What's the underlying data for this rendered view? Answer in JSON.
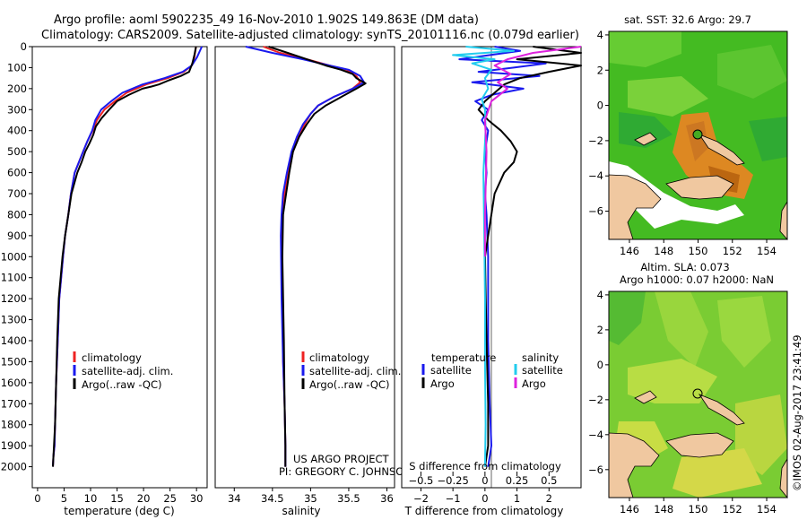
{
  "figure": {
    "title_line1": "Argo profile: aoml 5902235_49 16-Nov-2010 1.902S 149.863E (DM data)",
    "title_line2": "Climatology: CARS2009. Satellite-adjusted climatology: synTS_20101116.nc (0.079d earlier)",
    "timestamp": "©IMOS 02-Aug-2017 23:41:49",
    "project_line1": "US ARGO PROJECT",
    "project_line2": "PI: GREGORY C. JOHNSON"
  },
  "colors": {
    "climatology": "#ee2222",
    "satellite": "#1a1aee",
    "argo": "#000000",
    "sal_satellite": "#22ccee",
    "sal_argo": "#dd22dd"
  },
  "chart_data": [
    {
      "type": "line",
      "id": "temperature",
      "xlabel": "temperature (deg C)",
      "xlim": [
        -1,
        32
      ],
      "ylim": [
        2100,
        0
      ],
      "xticks": [
        0,
        5,
        10,
        15,
        20,
        25,
        30
      ],
      "xtick_labels": [
        "0",
        "5",
        "10",
        "15",
        "20",
        "25",
        "30"
      ],
      "yticks": [
        0,
        100,
        200,
        300,
        400,
        500,
        600,
        700,
        800,
        900,
        1000,
        1100,
        1200,
        1300,
        1400,
        1500,
        1600,
        1700,
        1800,
        1900,
        2000
      ],
      "legend": [
        "climatology",
        "satellite-adj. clim.",
        "Argo(..raw -QC)"
      ],
      "series": [
        {
          "name": "climatology",
          "color_key": "climatology",
          "x": [
            29.9,
            29.6,
            29.1,
            27.6,
            24.6,
            20.5,
            16.8,
            14.6,
            12.6,
            11.2,
            10.4,
            9.4,
            8.6,
            7.8,
            7.0,
            6.3,
            5.8,
            5.2,
            4.8,
            4.1,
            3.8,
            3.5,
            3.3,
            3.2,
            3.0,
            2.9
          ],
          "y": [
            0,
            50,
            90,
            120,
            150,
            180,
            220,
            260,
            300,
            350,
            400,
            450,
            500,
            550,
            600,
            700,
            800,
            900,
            1000,
            1200,
            1400,
            1600,
            1800,
            1900,
            1950,
            2000
          ]
        },
        {
          "name": "satellite-adj. clim.",
          "color_key": "satellite",
          "x": [
            31.0,
            30.1,
            29.1,
            27.4,
            24.0,
            19.8,
            16.0,
            13.9,
            12.0,
            10.9,
            10.3,
            9.4,
            8.6,
            7.8,
            7.0,
            6.3,
            5.8,
            5.2,
            4.8,
            4.1,
            3.8,
            3.5,
            3.3,
            3.2,
            3.0,
            2.9
          ],
          "y": [
            0,
            50,
            90,
            120,
            150,
            180,
            220,
            260,
            300,
            350,
            400,
            450,
            500,
            550,
            600,
            700,
            800,
            900,
            1000,
            1200,
            1400,
            1600,
            1800,
            1900,
            1950,
            2000
          ]
        },
        {
          "name": "Argo(..raw -QC)",
          "color_key": "argo",
          "x": [
            29.9,
            29.6,
            29.2,
            28.6,
            27.0,
            24.8,
            22.9,
            21.5,
            19.8,
            17.2,
            15.0,
            13.5,
            12.1,
            11.0,
            10.5,
            9.8,
            9.0,
            8.3,
            7.5,
            6.4,
            5.8,
            5.2,
            4.7,
            4.0,
            3.7,
            3.5,
            3.3,
            3.1,
            2.9
          ],
          "y": [
            0,
            40,
            80,
            120,
            140,
            160,
            180,
            190,
            200,
            230,
            260,
            300,
            340,
            380,
            420,
            460,
            500,
            550,
            600,
            700,
            800,
            900,
            1000,
            1200,
            1400,
            1600,
            1800,
            1900,
            2000
          ]
        }
      ]
    },
    {
      "type": "line",
      "id": "salinity",
      "xlabel": "salinity",
      "xlim": [
        33.75,
        36.1
      ],
      "ylim": [
        2100,
        0
      ],
      "xticks": [
        34,
        34.5,
        35,
        35.5,
        36
      ],
      "xtick_labels": [
        "34",
        "34.5",
        "35",
        "35.5",
        "36"
      ],
      "legend": [
        "climatology",
        "satellite-adj. clim.",
        "Argo(..raw -QC)"
      ],
      "series": [
        {
          "name": "climatology",
          "color_key": "climatology",
          "x": [
            34.38,
            34.6,
            34.95,
            35.25,
            35.47,
            35.6,
            35.65,
            35.55,
            35.3,
            35.1,
            35.0,
            34.92,
            34.84,
            34.77,
            34.71,
            34.66,
            34.63,
            34.62,
            34.63,
            34.64,
            34.66,
            34.67,
            34.67
          ],
          "y": [
            0,
            30,
            60,
            90,
            110,
            140,
            170,
            200,
            240,
            280,
            320,
            370,
            430,
            500,
            600,
            700,
            800,
            900,
            1200,
            1500,
            1700,
            1900,
            2000
          ]
        },
        {
          "name": "satellite-adj. clim.",
          "color_key": "satellite",
          "x": [
            34.15,
            34.5,
            34.9,
            35.25,
            35.5,
            35.65,
            35.7,
            35.55,
            35.3,
            35.1,
            35.0,
            34.9,
            34.82,
            34.75,
            34.69,
            34.64,
            34.62,
            34.61,
            34.62,
            34.64,
            34.66,
            34.67,
            34.67
          ],
          "y": [
            0,
            30,
            60,
            90,
            110,
            140,
            170,
            200,
            240,
            280,
            320,
            370,
            430,
            500,
            600,
            700,
            800,
            900,
            1200,
            1500,
            1700,
            1900,
            2000
          ]
        },
        {
          "name": "Argo(..raw -QC)",
          "color_key": "argo",
          "x": [
            34.45,
            34.7,
            34.95,
            35.2,
            35.4,
            35.55,
            35.6,
            35.72,
            35.6,
            35.4,
            35.2,
            35.05,
            34.95,
            34.85,
            34.77,
            34.72,
            34.68,
            34.64,
            34.63,
            34.65,
            34.66,
            34.67,
            34.67
          ],
          "y": [
            0,
            30,
            60,
            90,
            110,
            130,
            150,
            175,
            200,
            240,
            280,
            320,
            370,
            430,
            500,
            600,
            700,
            800,
            1000,
            1400,
            1700,
            1900,
            2000
          ]
        }
      ]
    },
    {
      "type": "line",
      "id": "differences",
      "xlabel_top": "S difference from climatology",
      "xlabel": "T difference from climatology",
      "xlim": [
        -2.6,
        3.0
      ],
      "ylim": [
        2100,
        0
      ],
      "xticks": [
        -2,
        -1,
        0,
        1,
        2
      ],
      "xtick_labels": [
        "−2",
        "−1",
        "0",
        "1",
        "2"
      ],
      "sticks": [
        -2.0,
        -1.0,
        0,
        1.0,
        2.0
      ],
      "stick_labels": [
        "−0.5",
        "−0.25",
        "0",
        "0.25",
        "0.5"
      ],
      "legend": {
        "temperature": "temperature",
        "salinity": "salinity",
        "items": [
          "satellite",
          "Argo",
          "satellite",
          "Argo"
        ]
      },
      "series": [
        {
          "name": "temperature satellite",
          "color_key": "satellite",
          "x": [
            0.3,
            1.1,
            -0.8,
            1.9,
            0.9,
            -0.2,
            1.7,
            -0.4,
            1.2,
            0.2,
            -0.3,
            0.1,
            -0.1,
            0.1,
            0.0,
            0.05,
            0.0,
            0.05,
            0.1,
            0.1,
            0.15,
            0.2,
            0.1
          ],
          "y": [
            0,
            20,
            60,
            80,
            100,
            120,
            140,
            170,
            200,
            230,
            260,
            300,
            350,
            400,
            500,
            600,
            700,
            800,
            1000,
            1400,
            1700,
            1900,
            2000
          ]
        },
        {
          "name": "temperature Argo",
          "color_key": "argo",
          "x": [
            1.5,
            3.0,
            1.0,
            3.0,
            2.0,
            1.1,
            0.6,
            0.3,
            0.0,
            -0.2,
            0.1,
            0.5,
            0.8,
            1.0,
            0.9,
            0.6,
            0.3,
            0.2,
            0.1,
            0.0,
            0.05,
            0.1,
            0.1,
            0.0
          ],
          "y": [
            0,
            30,
            60,
            90,
            120,
            150,
            180,
            220,
            260,
            300,
            350,
            400,
            450,
            500,
            550,
            600,
            700,
            800,
            900,
            1000,
            1400,
            1700,
            1900,
            2000
          ]
        },
        {
          "name": "salinity satellite",
          "color_key": "sal_satellite",
          "x": [
            -0.6,
            0.9,
            -1.0,
            0.3,
            -0.4,
            0.2,
            0.0,
            0.1,
            -0.1,
            0.0,
            0.02,
            -0.05,
            -0.02,
            0.0,
            0.0,
            0.02,
            0.0
          ],
          "y": [
            0,
            20,
            40,
            60,
            80,
            110,
            150,
            200,
            250,
            300,
            400,
            600,
            900,
            1200,
            1500,
            1800,
            2000
          ]
        },
        {
          "name": "salinity Argo",
          "color_key": "sal_argo",
          "x": [
            3.0,
            1.5,
            0.7,
            0.3,
            0.8,
            0.4,
            0.7,
            0.2,
            0.0,
            0.05,
            0.0,
            0.0
          ],
          "y": [
            0,
            30,
            60,
            90,
            130,
            170,
            200,
            260,
            350,
            500,
            800,
            1000
          ]
        }
      ]
    }
  ],
  "maps": [
    {
      "id": "sst-map",
      "title": "sat. SST: 32.6  Argo: 29.7",
      "xticks": [
        146,
        148,
        150,
        152,
        154
      ],
      "yticks": [
        4,
        2,
        0,
        -2,
        -4,
        -6
      ]
    },
    {
      "id": "sla-map",
      "title_line1": "Altim. SLA: 0.073",
      "title_line2": "Argo h1000: 0.07 h2000: NaN",
      "xticks": [
        146,
        148,
        150,
        152,
        154
      ],
      "yticks": [
        4,
        2,
        0,
        -2,
        -4,
        -6
      ]
    }
  ]
}
